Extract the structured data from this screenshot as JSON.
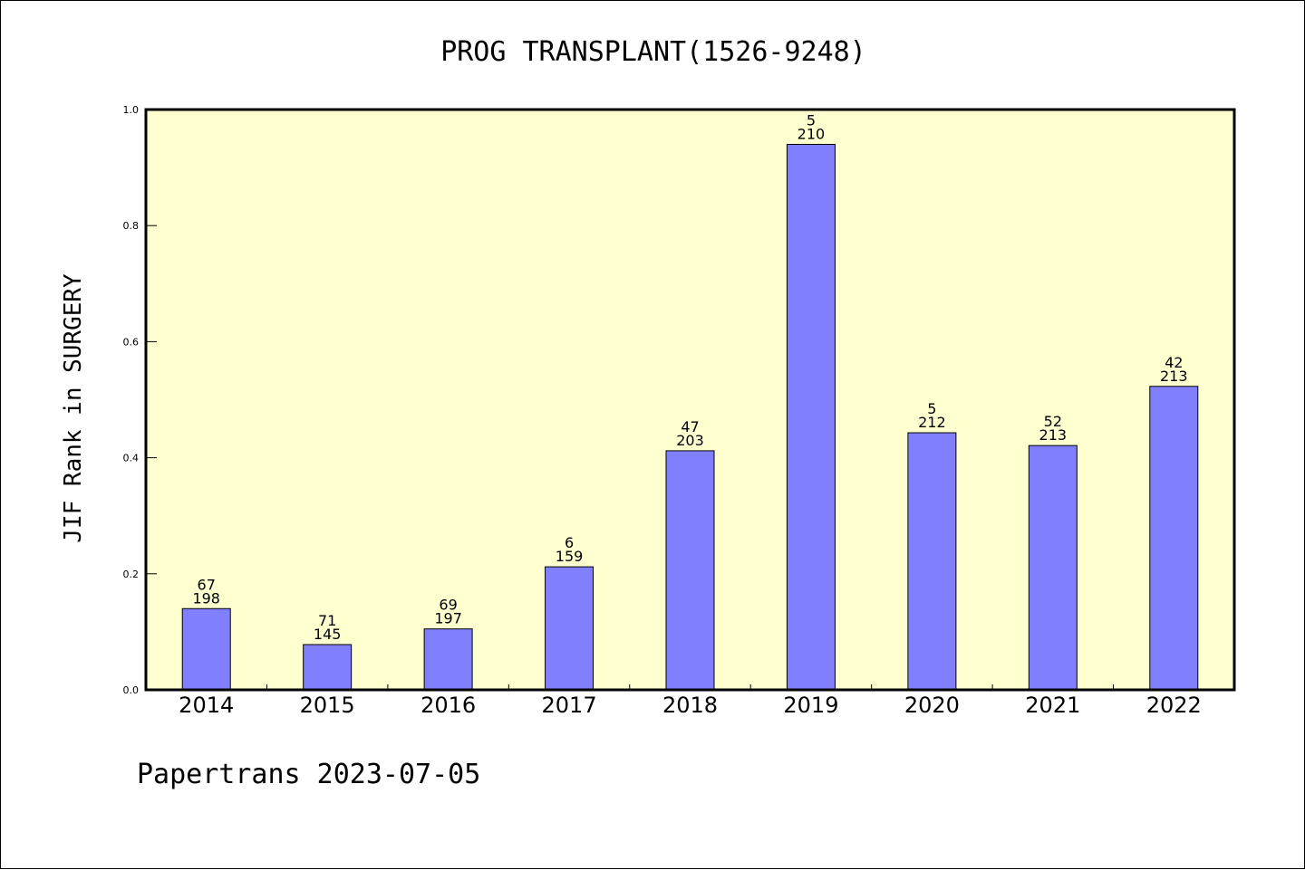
{
  "chart_data": {
    "type": "bar",
    "title": "PROG TRANSPLANT(1526-9248)",
    "ylabel": "JIF Rank in SURGERY",
    "xlabel": "",
    "ylim": [
      0,
      1.0
    ],
    "yticks": [
      "0.0",
      "0.2",
      "0.4",
      "0.6",
      "0.8",
      "1.0"
    ],
    "categories": [
      "2014",
      "2015",
      "2016",
      "2017",
      "2018",
      "2019",
      "2020",
      "2021",
      "2022"
    ],
    "values": [
      0.14,
      0.078,
      0.105,
      0.212,
      0.412,
      0.94,
      0.443,
      0.421,
      0.523
    ],
    "rank": [
      "67",
      "71",
      "69",
      "6",
      "47",
      "5",
      "5",
      "52",
      "42"
    ],
    "total": [
      "198",
      "145",
      "197",
      "159",
      "203",
      "210",
      "212",
      "213",
      "213"
    ],
    "bar_color": "#8080ff",
    "plot_background": "#ffffd0",
    "grid": false,
    "legend": "none"
  },
  "footer": "Papertrans 2023-07-05"
}
